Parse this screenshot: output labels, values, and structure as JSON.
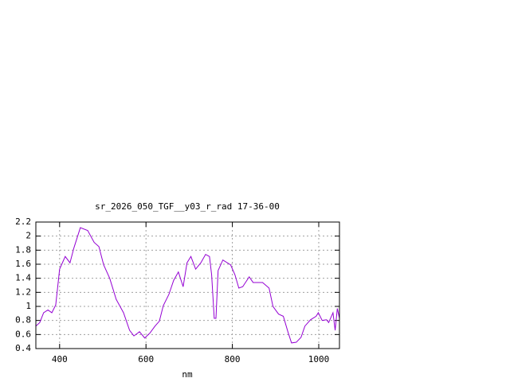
{
  "chart_data": {
    "type": "line",
    "title": "sr_2026_050_TGF__y03_r_rad 17-36-00",
    "x_label": "nm",
    "x": [
      345,
      354,
      363,
      373,
      382,
      391,
      400,
      413,
      424,
      433,
      448,
      465,
      480,
      491,
      502,
      516,
      531,
      548,
      562,
      572,
      585,
      597,
      609,
      621,
      631,
      640,
      653,
      664,
      675,
      686,
      695,
      704,
      715,
      727,
      738,
      747,
      752,
      758,
      762,
      767,
      778,
      796,
      806,
      815,
      824,
      839,
      848,
      870,
      885,
      894,
      907,
      918,
      929,
      937,
      948,
      959,
      968,
      981,
      994,
      999,
      1008,
      1018,
      1023,
      1033,
      1038,
      1043,
      1048
    ],
    "series": [
      {
        "color": "#9400d3",
        "values": [
          0.72,
          0.77,
          0.91,
          0.95,
          0.91,
          1.02,
          1.53,
          1.71,
          1.62,
          1.83,
          2.12,
          2.08,
          1.91,
          1.85,
          1.59,
          1.4,
          1.1,
          0.91,
          0.66,
          0.58,
          0.64,
          0.55,
          0.62,
          0.72,
          0.79,
          1.01,
          1.17,
          1.37,
          1.49,
          1.28,
          1.62,
          1.71,
          1.53,
          1.62,
          1.74,
          1.71,
          1.45,
          0.83,
          0.83,
          1.51,
          1.66,
          1.59,
          1.45,
          1.26,
          1.28,
          1.42,
          1.34,
          1.34,
          1.26,
          1.0,
          0.89,
          0.86,
          0.63,
          0.48,
          0.49,
          0.56,
          0.72,
          0.81,
          0.86,
          0.91,
          0.8,
          0.81,
          0.77,
          0.91,
          0.66,
          0.97,
          0.83
        ]
      }
    ],
    "xlim": [
      345,
      1048
    ],
    "xticks": [
      400,
      600,
      800,
      1000
    ],
    "ylim": [
      0.4,
      2.2
    ],
    "yticks": [
      0.4,
      0.6,
      0.8,
      1,
      1.2,
      1.4,
      1.6,
      1.8,
      2,
      2.2
    ],
    "grid": true
  }
}
